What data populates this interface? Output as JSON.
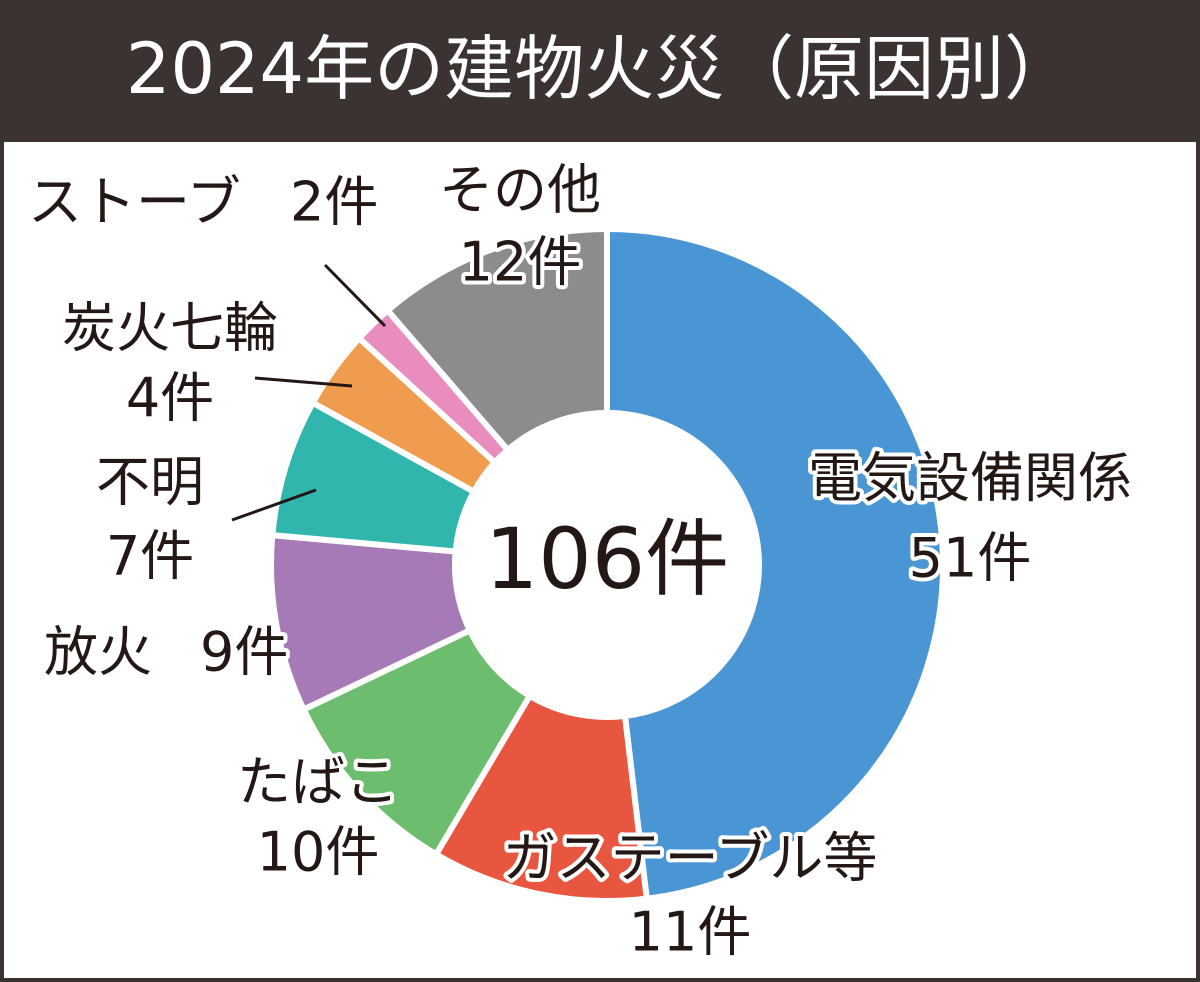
{
  "chart_data": {
    "type": "pie",
    "title": "2024年の建物火災（原因別）",
    "center_text": "106件",
    "categories": [
      "電気設備関係",
      "ガステーブル等",
      "たばこ",
      "放火",
      "不明",
      "炭火七輪",
      "ストーブ",
      "その他"
    ],
    "values": [
      51,
      11,
      10,
      9,
      7,
      4,
      2,
      12
    ],
    "value_labels": [
      "51件",
      "11件",
      "10件",
      "9件",
      "7件",
      "4件",
      "2件",
      "12件"
    ],
    "colors": [
      "#4a95d3",
      "#e85640",
      "#6dbd6e",
      "#a57ab6",
      "#30b6ac",
      "#f09c4f",
      "#e98cbe",
      "#8c8c8c"
    ]
  }
}
